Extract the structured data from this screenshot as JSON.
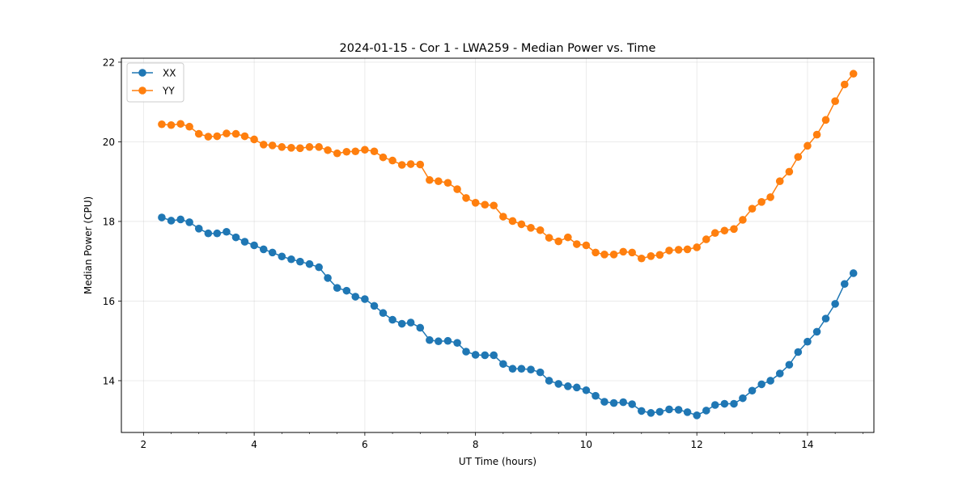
{
  "chart_data": {
    "type": "line",
    "title": "2024-01-15 - Cor 1 - LWA259 - Median Power vs. Time",
    "xlabel": "UT Time (hours)",
    "ylabel": "Median Power (CPU)",
    "xlim": [
      1.6,
      15.2
    ],
    "ylim": [
      12.7,
      22.1
    ],
    "xticks": [
      2,
      4,
      6,
      8,
      10,
      12,
      14
    ],
    "yticks": [
      14,
      16,
      18,
      20,
      22
    ],
    "xtick_labels": [
      "2",
      "4",
      "6",
      "8",
      "10",
      "12",
      "14"
    ],
    "ytick_labels": [
      "14",
      "16",
      "18",
      "20",
      "22"
    ],
    "grid": true,
    "legend_position": "top-left",
    "x": [
      2.33,
      2.5,
      2.67,
      2.83,
      3.0,
      3.17,
      3.33,
      3.5,
      3.67,
      3.83,
      4.0,
      4.17,
      4.33,
      4.5,
      4.67,
      4.83,
      5.0,
      5.17,
      5.33,
      5.5,
      5.67,
      5.83,
      6.0,
      6.17,
      6.33,
      6.5,
      6.67,
      6.83,
      7.0,
      7.17,
      7.33,
      7.5,
      7.67,
      7.83,
      8.0,
      8.17,
      8.33,
      8.5,
      8.67,
      8.83,
      9.0,
      9.17,
      9.33,
      9.5,
      9.67,
      9.83,
      10.0,
      10.17,
      10.33,
      10.5,
      10.67,
      10.83,
      11.0,
      11.17,
      11.33,
      11.5,
      11.67,
      11.83,
      12.0,
      12.17,
      12.33,
      12.5,
      12.67,
      12.83,
      13.0,
      13.17,
      13.33,
      13.5,
      13.67,
      13.83,
      14.0,
      14.17,
      14.33,
      14.5,
      14.67,
      14.83
    ],
    "series": [
      {
        "name": "XX",
        "color": "#1f77b4",
        "values": [
          18.1,
          18.02,
          18.05,
          17.98,
          17.82,
          17.7,
          17.7,
          17.74,
          17.6,
          17.49,
          17.4,
          17.3,
          17.22,
          17.12,
          17.05,
          16.99,
          16.93,
          16.85,
          16.58,
          16.33,
          16.26,
          16.11,
          16.05,
          15.88,
          15.7,
          15.53,
          15.43,
          15.46,
          15.33,
          15.02,
          14.99,
          15.0,
          14.95,
          14.73,
          14.65,
          14.64,
          14.64,
          14.42,
          14.3,
          14.3,
          14.28,
          14.21,
          14.0,
          13.92,
          13.86,
          13.83,
          13.76,
          13.62,
          13.47,
          13.44,
          13.46,
          13.41,
          13.24,
          13.19,
          13.22,
          13.28,
          13.27,
          13.21,
          13.13,
          13.25,
          13.39,
          13.42,
          13.42,
          13.56,
          13.75,
          13.91,
          14.0,
          14.18,
          14.4,
          14.72,
          14.98,
          15.23,
          15.56,
          15.93,
          16.43,
          16.7
        ]
      },
      {
        "name": "YY",
        "color": "#ff7f0e",
        "values": [
          20.44,
          20.42,
          20.45,
          20.38,
          20.2,
          20.13,
          20.14,
          20.21,
          20.2,
          20.14,
          20.06,
          19.93,
          19.91,
          19.87,
          19.85,
          19.84,
          19.87,
          19.87,
          19.79,
          19.71,
          19.75,
          19.76,
          19.8,
          19.76,
          19.61,
          19.53,
          19.42,
          19.44,
          19.43,
          19.04,
          19.01,
          18.97,
          18.81,
          18.59,
          18.47,
          18.42,
          18.4,
          18.12,
          18.01,
          17.93,
          17.84,
          17.78,
          17.59,
          17.5,
          17.6,
          17.43,
          17.4,
          17.22,
          17.17,
          17.17,
          17.24,
          17.22,
          17.07,
          17.13,
          17.16,
          17.27,
          17.29,
          17.3,
          17.35,
          17.55,
          17.71,
          17.77,
          17.81,
          18.04,
          18.32,
          18.49,
          18.61,
          19.01,
          19.25,
          19.62,
          19.9,
          20.18,
          20.55,
          21.02,
          21.44,
          21.71
        ]
      }
    ]
  }
}
